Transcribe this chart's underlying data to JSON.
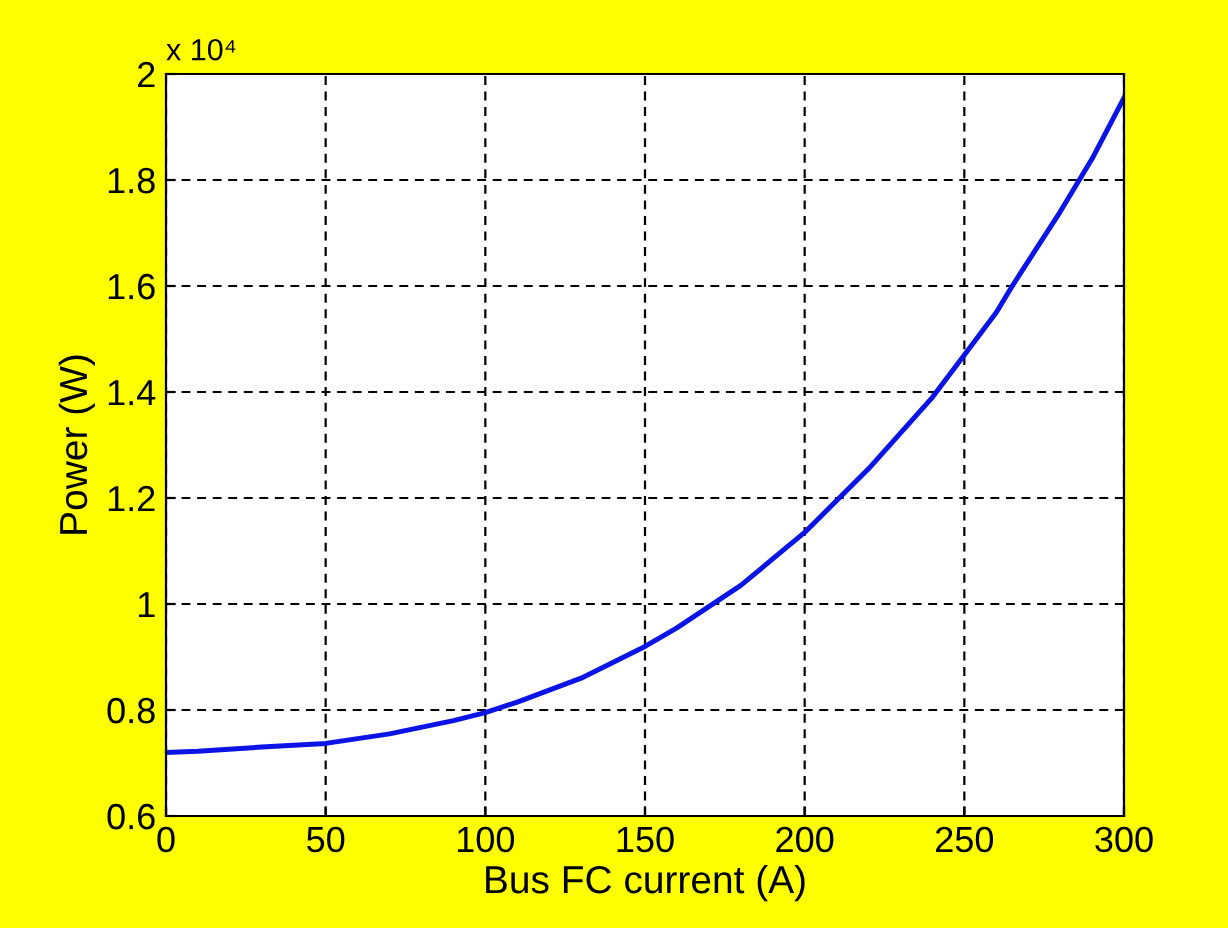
{
  "chart_data": {
    "type": "line",
    "xlabel": "Bus FC current (A)",
    "ylabel": "Power (W)",
    "annotations": [
      "x 10⁴"
    ],
    "x": [
      0,
      10,
      30,
      50,
      70,
      90,
      100,
      110,
      130,
      150,
      160,
      180,
      200,
      220,
      240,
      250,
      260,
      265,
      280,
      290,
      300
    ],
    "series": [
      {
        "color": "#0a14e6",
        "values": [
          0.72,
          0.722,
          0.73,
          0.737,
          0.755,
          0.78,
          0.795,
          0.815,
          0.86,
          0.92,
          0.955,
          1.035,
          1.135,
          1.255,
          1.39,
          1.47,
          1.55,
          1.6,
          1.74,
          1.84,
          1.955
        ]
      }
    ],
    "xlim": [
      0,
      300
    ],
    "ylim": [
      0.6,
      2
    ],
    "xticks": [
      0,
      50,
      100,
      150,
      200,
      250,
      300
    ],
    "yticks": [
      0.6,
      0.8,
      1,
      1.2,
      1.4,
      1.6,
      1.8,
      2
    ],
    "grid": true,
    "line_style": "solid"
  }
}
